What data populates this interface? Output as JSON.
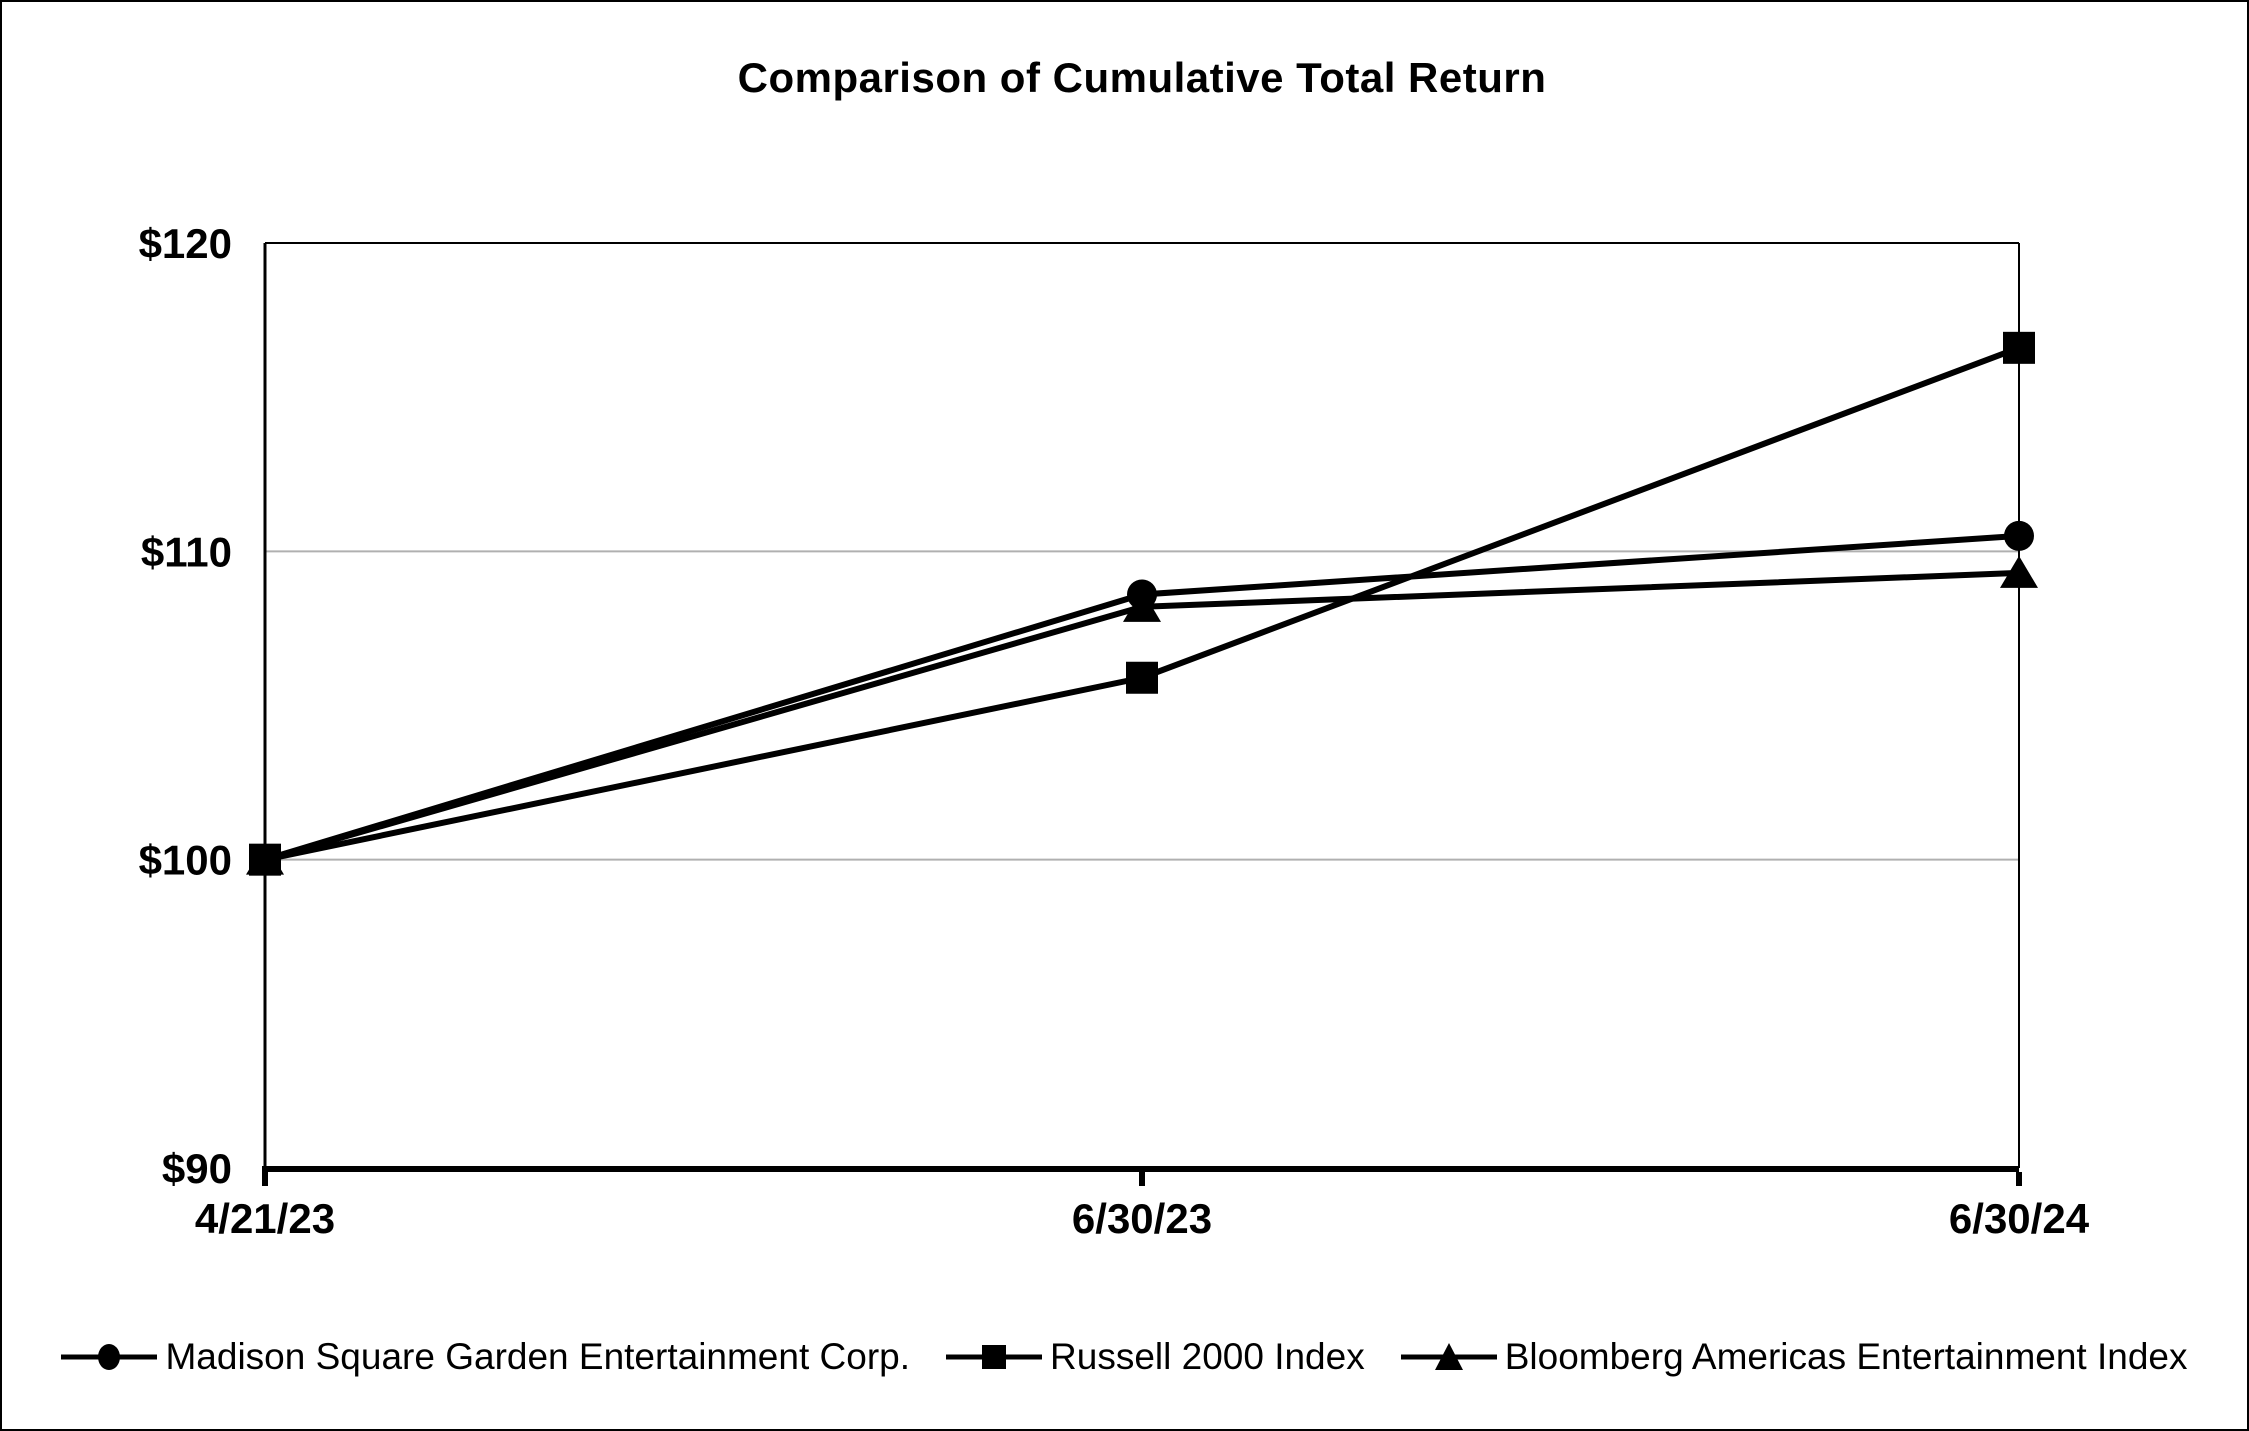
{
  "chart_data": {
    "type": "line",
    "title": "Comparison of Cumulative Total Return",
    "categories": [
      "4/21/23",
      "6/30/23",
      "6/30/24"
    ],
    "series": [
      {
        "name": "Madison Square Garden Entertainment Corp.",
        "marker": "circle",
        "values": [
          100,
          108.6,
          110.5
        ]
      },
      {
        "name": "Russell 2000 Index",
        "marker": "square",
        "values": [
          100,
          105.9,
          116.6
        ]
      },
      {
        "name": "Bloomberg Americas Entertainment Index",
        "marker": "triangle",
        "values": [
          100,
          108.2,
          109.3
        ]
      }
    ],
    "ylim": [
      90,
      120
    ],
    "yticks": [
      {
        "value": 90,
        "label": "$90"
      },
      {
        "value": 100,
        "label": "$100"
      },
      {
        "value": 110,
        "label": "$110"
      },
      {
        "value": 120,
        "label": "$120"
      }
    ],
    "grid": "horizontal-light-gray",
    "legend_position": "bottom",
    "line_color": "#000000",
    "grid_color": "#b0b0b0",
    "background_color": "#ffffff"
  }
}
